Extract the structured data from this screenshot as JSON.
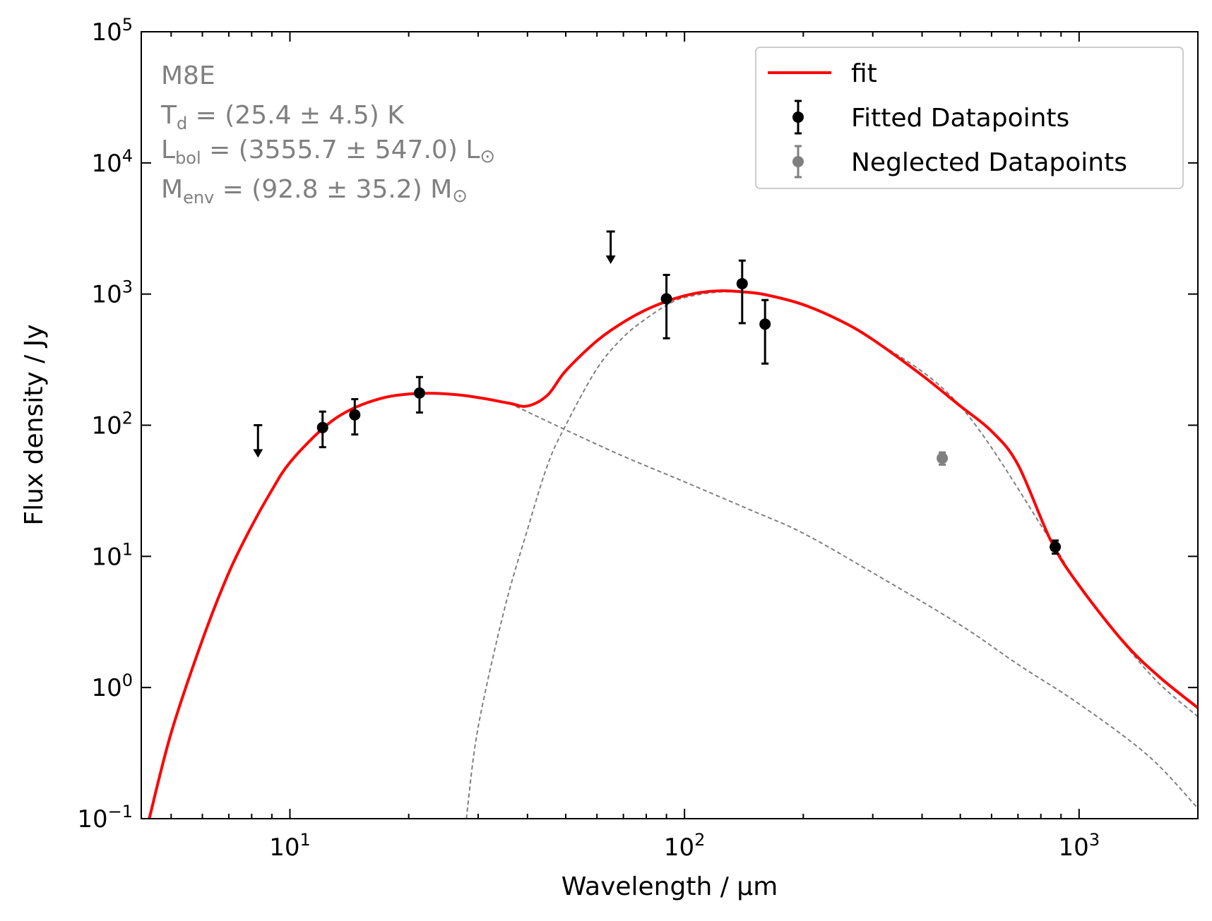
{
  "chart_data": {
    "type": "scatter",
    "title": "",
    "xlabel": "Wavelength / μm",
    "ylabel": "Flux density / Jy",
    "xscale": "log",
    "yscale": "log",
    "xlim": [
      4.2,
      2000
    ],
    "ylim": [
      0.1,
      100000
    ],
    "x_ticks": [
      {
        "value": 10,
        "base": "10",
        "exp": "1"
      },
      {
        "value": 100,
        "base": "10",
        "exp": "2"
      },
      {
        "value": 1000,
        "base": "10",
        "exp": "3"
      }
    ],
    "y_ticks": [
      {
        "value": 0.1,
        "base": "10",
        "exp": "−1"
      },
      {
        "value": 1,
        "base": "10",
        "exp": "0"
      },
      {
        "value": 10,
        "base": "10",
        "exp": "1"
      },
      {
        "value": 100,
        "base": "10",
        "exp": "2"
      },
      {
        "value": 1000,
        "base": "10",
        "exp": "3"
      },
      {
        "value": 10000,
        "base": "10",
        "exp": "4"
      },
      {
        "value": 100000,
        "base": "10",
        "exp": "5"
      }
    ],
    "annotation": {
      "source": "M8E",
      "td": {
        "sym": "T",
        "sub": "d",
        "rest": " = (25.4 ± 4.5) K"
      },
      "lbol": {
        "sym": "L",
        "sub": "bol",
        "rest": " = (3555.7 ± 547.0) L",
        "unit": "⊙"
      },
      "menv": {
        "sym": "M",
        "sub": "env",
        "rest": " = (92.8 ± 35.2) M",
        "unit": "⊙"
      }
    },
    "legend": {
      "position": "top-right",
      "entries": [
        {
          "label": "fit",
          "kind": "line",
          "color": "#ff0000"
        },
        {
          "label": "Fitted Datapoints",
          "kind": "errorbar",
          "color": "#000000"
        },
        {
          "label": "Neglected Datapoints",
          "kind": "errorbar",
          "color": "#808080"
        }
      ]
    },
    "series": [
      {
        "name": "fit",
        "kind": "line",
        "color": "#ff0000",
        "points": [
          [
            4.4,
            0.1
          ],
          [
            5,
            0.45
          ],
          [
            6,
            2.3
          ],
          [
            7,
            7.5
          ],
          [
            8,
            17
          ],
          [
            9,
            32
          ],
          [
            10,
            52
          ],
          [
            12,
            92
          ],
          [
            14,
            128
          ],
          [
            17,
            160
          ],
          [
            20,
            173
          ],
          [
            23,
            175
          ],
          [
            27,
            170
          ],
          [
            31,
            160
          ],
          [
            36,
            147
          ],
          [
            40,
            140
          ],
          [
            45,
            170
          ],
          [
            50,
            260
          ],
          [
            60,
            440
          ],
          [
            70,
            610
          ],
          [
            80,
            760
          ],
          [
            90,
            880
          ],
          [
            100,
            970
          ],
          [
            110,
            1030
          ],
          [
            125,
            1060
          ],
          [
            140,
            1040
          ],
          [
            160,
            990
          ],
          [
            200,
            830
          ],
          [
            250,
            620
          ],
          [
            300,
            450
          ],
          [
            400,
            240
          ],
          [
            500,
            140
          ],
          [
            600,
            90
          ],
          [
            700,
            50
          ],
          [
            850,
            13
          ],
          [
            1000,
            6
          ],
          [
            1300,
            2.2
          ],
          [
            1600,
            1.2
          ],
          [
            2000,
            0.7
          ]
        ]
      },
      {
        "name": "warm component",
        "kind": "dashed",
        "color": "#808080",
        "points": [
          [
            36,
            147
          ],
          [
            50,
            92
          ],
          [
            70,
            58
          ],
          [
            100,
            37
          ],
          [
            150,
            22
          ],
          [
            200,
            15
          ],
          [
            300,
            7.5
          ],
          [
            500,
            3
          ],
          [
            700,
            1.5
          ],
          [
            1000,
            0.75
          ],
          [
            1500,
            0.3
          ],
          [
            2000,
            0.12
          ]
        ]
      },
      {
        "name": "cold component",
        "kind": "dashed",
        "color": "#808080",
        "points": [
          [
            28,
            0.1
          ],
          [
            30,
            0.5
          ],
          [
            35,
            4
          ],
          [
            40,
            16
          ],
          [
            45,
            50
          ],
          [
            50,
            100
          ],
          [
            60,
            270
          ],
          [
            70,
            470
          ],
          [
            80,
            650
          ],
          [
            90,
            820
          ],
          [
            100,
            940
          ],
          [
            125,
            1040
          ],
          [
            160,
            980
          ],
          [
            200,
            830
          ],
          [
            300,
            450
          ],
          [
            500,
            140
          ],
          [
            850,
            13
          ],
          [
            1000,
            6
          ],
          [
            1500,
            1.3
          ],
          [
            2000,
            0.6
          ]
        ]
      },
      {
        "name": "Fitted Datapoints",
        "kind": "errorbar",
        "color": "#000000",
        "points": [
          {
            "x": 12.1,
            "y": 96,
            "ylo": 68,
            "yhi": 127
          },
          {
            "x": 14.6,
            "y": 120,
            "ylo": 85,
            "yhi": 158
          },
          {
            "x": 21.3,
            "y": 176,
            "ylo": 125,
            "yhi": 233
          },
          {
            "x": 90,
            "y": 920,
            "ylo": 460,
            "yhi": 1400
          },
          {
            "x": 140,
            "y": 1200,
            "ylo": 600,
            "yhi": 1800
          },
          {
            "x": 160,
            "y": 590,
            "ylo": 295,
            "yhi": 900
          },
          {
            "x": 870,
            "y": 11.8,
            "ylo": 10.5,
            "yhi": 13.2
          }
        ]
      },
      {
        "name": "Neglected Datapoints",
        "kind": "errorbar",
        "color": "#808080",
        "points": [
          {
            "x": 450,
            "y": 56,
            "ylo": 50,
            "yhi": 62
          }
        ]
      },
      {
        "name": "upper limits",
        "kind": "upper-limit",
        "color": "#000000",
        "points": [
          {
            "x": 8.3,
            "y": 100
          },
          {
            "x": 65,
            "y": 3000
          }
        ]
      }
    ]
  }
}
